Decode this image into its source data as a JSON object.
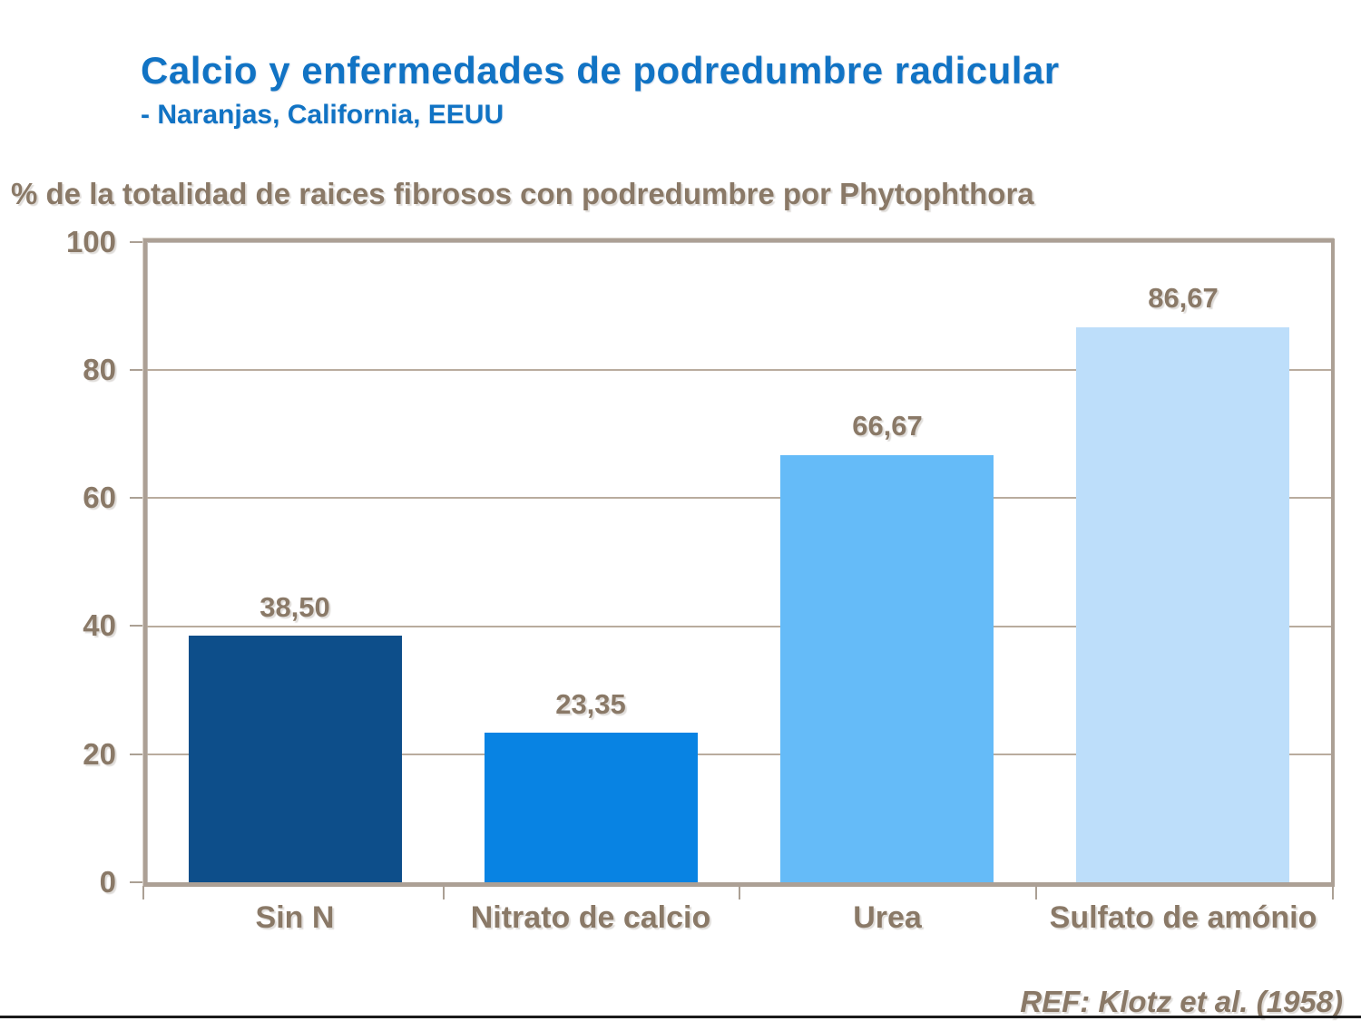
{
  "slide": {
    "title": "Calcio y enfermedades de podredumbre radicular",
    "subtitle": "- Naranjas, California, EEUU",
    "reference": "REF: Klotz et al. (1958)"
  },
  "chart_data": {
    "type": "bar",
    "title": "Calcio y enfermedades de podredumbre radicular - Naranjas, California, EEUU",
    "axis_title": "% de la totalidad de raices fibrosos con podredumbre por Phytophthora",
    "categories": [
      "Sin N",
      "Nitrato de calcio",
      "Urea",
      "Sulfato de amónio"
    ],
    "values": [
      38.5,
      23.35,
      66.67,
      86.67
    ],
    "value_labels": [
      "38,50",
      "23,35",
      "66,67",
      "86,67"
    ],
    "y_ticks": [
      "0",
      "20",
      "40",
      "60",
      "80",
      "100"
    ],
    "ylim": [
      0,
      100
    ],
    "grid": true,
    "legend_position": "none",
    "bar_colors": [
      "#0D4E8A",
      "#0883E3",
      "#65BBF8",
      "#BDDEFA"
    ],
    "annotation": "REF: Klotz et al. (1958)"
  },
  "colors": {
    "title_blue": "#1173C4",
    "text_brown": "#8A7967",
    "axis_frame_tan": "#ACA095",
    "gridline_tan": "#B9AC9E",
    "footer_line_dark": "#1B1B1B",
    "background": "#FFFFFF"
  }
}
